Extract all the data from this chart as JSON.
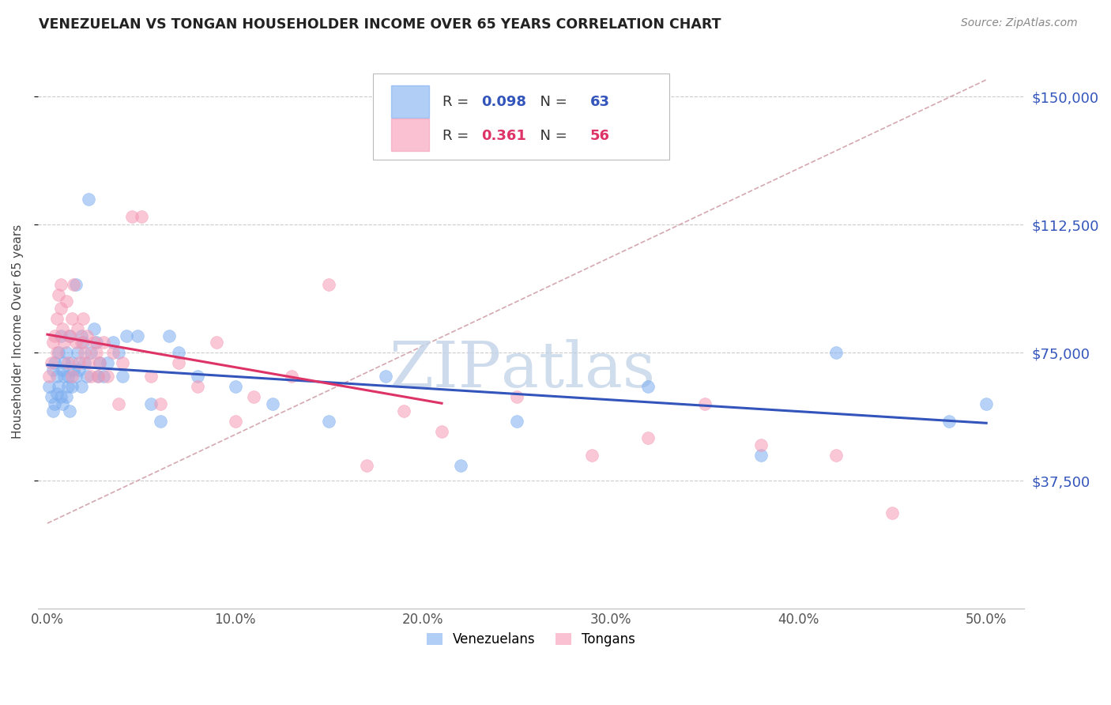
{
  "title": "VENEZUELAN VS TONGAN HOUSEHOLDER INCOME OVER 65 YEARS CORRELATION CHART",
  "source": "Source: ZipAtlas.com",
  "ylabel": "Householder Income Over 65 years",
  "xlabel_ticks": [
    "0.0%",
    "10.0%",
    "20.0%",
    "30.0%",
    "40.0%",
    "50.0%"
  ],
  "xlabel_vals": [
    0.0,
    0.1,
    0.2,
    0.3,
    0.4,
    0.5
  ],
  "ytick_labels": [
    "$37,500",
    "$75,000",
    "$112,500",
    "$150,000"
  ],
  "ytick_vals": [
    37500,
    75000,
    112500,
    150000
  ],
  "ylim": [
    0,
    162500
  ],
  "xlim": [
    -0.005,
    0.52
  ],
  "venezuelan_R": "0.098",
  "venezuelan_N": "63",
  "tongan_R": "0.361",
  "tongan_N": "56",
  "venezuelan_color": "#7daef0",
  "tongan_color": "#f599b4",
  "trend_venezuelan_color": "#3355bb",
  "trend_tongan_color": "#dd3366",
  "diagonal_color": "#d4a8b0",
  "watermark_zip": "ZIP",
  "watermark_atlas": "atlas",
  "venezuelan_x": [
    0.001,
    0.002,
    0.003,
    0.003,
    0.004,
    0.004,
    0.005,
    0.005,
    0.006,
    0.006,
    0.007,
    0.007,
    0.008,
    0.008,
    0.009,
    0.009,
    0.01,
    0.01,
    0.011,
    0.011,
    0.012,
    0.012,
    0.013,
    0.013,
    0.014,
    0.015,
    0.015,
    0.016,
    0.017,
    0.018,
    0.018,
    0.019,
    0.02,
    0.021,
    0.022,
    0.023,
    0.025,
    0.026,
    0.027,
    0.028,
    0.03,
    0.032,
    0.035,
    0.038,
    0.04,
    0.042,
    0.048,
    0.055,
    0.06,
    0.065,
    0.07,
    0.08,
    0.1,
    0.12,
    0.15,
    0.18,
    0.22,
    0.25,
    0.32,
    0.38,
    0.42,
    0.48,
    0.5
  ],
  "venezuelan_y": [
    65000,
    62000,
    70000,
    58000,
    72000,
    60000,
    68000,
    63000,
    75000,
    65000,
    80000,
    62000,
    70000,
    60000,
    68000,
    72000,
    75000,
    62000,
    68000,
    65000,
    80000,
    58000,
    72000,
    65000,
    70000,
    95000,
    68000,
    75000,
    70000,
    80000,
    65000,
    78000,
    72000,
    68000,
    120000,
    75000,
    82000,
    78000,
    68000,
    72000,
    68000,
    72000,
    78000,
    75000,
    68000,
    80000,
    80000,
    60000,
    55000,
    80000,
    75000,
    68000,
    65000,
    60000,
    55000,
    68000,
    42000,
    55000,
    65000,
    45000,
    75000,
    55000,
    60000
  ],
  "tongan_x": [
    0.001,
    0.002,
    0.003,
    0.004,
    0.005,
    0.005,
    0.006,
    0.007,
    0.007,
    0.008,
    0.009,
    0.01,
    0.011,
    0.012,
    0.013,
    0.013,
    0.014,
    0.015,
    0.016,
    0.017,
    0.018,
    0.019,
    0.02,
    0.021,
    0.022,
    0.023,
    0.025,
    0.026,
    0.027,
    0.028,
    0.03,
    0.032,
    0.035,
    0.038,
    0.04,
    0.045,
    0.05,
    0.055,
    0.06,
    0.07,
    0.08,
    0.09,
    0.1,
    0.11,
    0.13,
    0.15,
    0.17,
    0.19,
    0.21,
    0.25,
    0.29,
    0.32,
    0.35,
    0.38,
    0.42,
    0.45
  ],
  "tongan_y": [
    68000,
    72000,
    78000,
    80000,
    85000,
    75000,
    92000,
    95000,
    88000,
    82000,
    78000,
    90000,
    72000,
    80000,
    85000,
    68000,
    95000,
    78000,
    82000,
    72000,
    78000,
    85000,
    75000,
    80000,
    72000,
    68000,
    78000,
    75000,
    68000,
    72000,
    78000,
    68000,
    75000,
    60000,
    72000,
    115000,
    115000,
    68000,
    60000,
    72000,
    65000,
    78000,
    55000,
    62000,
    68000,
    95000,
    42000,
    58000,
    52000,
    62000,
    45000,
    50000,
    60000,
    48000,
    45000,
    28000
  ]
}
